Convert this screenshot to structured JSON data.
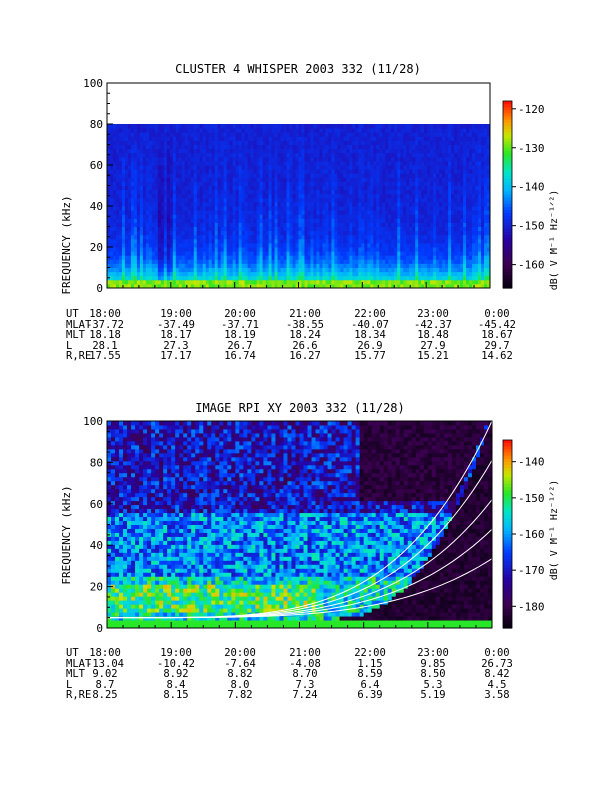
{
  "chart_data": [
    {
      "type": "heatmap",
      "title": "CLUSTER 4 WHISPER 2003 332 (11/28)",
      "ylabel": "FREQUENCY (kHz)",
      "ylim": [
        0,
        100
      ],
      "yticks": [
        "0",
        "20",
        "40",
        "60",
        "80",
        "100"
      ],
      "colorbar": {
        "label": "dB( V M⁻¹ Hz⁻¹ᐟ²)",
        "range": [
          -166,
          -118
        ],
        "ticks": [
          "-120",
          "-130",
          "-140",
          "-150",
          "-160"
        ]
      },
      "x_categories": [
        "18:00",
        "19:00",
        "20:00",
        "21:00",
        "22:00",
        "23:00",
        "0:00"
      ],
      "ephemeris": [
        {
          "label": "UT",
          "values": [
            "18:00",
            "19:00",
            "20:00",
            "21:00",
            "22:00",
            "23:00",
            "0:00"
          ]
        },
        {
          "label": "MLAT",
          "values": [
            "-37.72",
            "-37.49",
            "-37.71",
            "-38.55",
            "-40.07",
            "-42.37",
            "-45.42"
          ]
        },
        {
          "label": "MLT",
          "values": [
            "18.18",
            "18.17",
            "18.19",
            "18.24",
            "18.34",
            "18.48",
            "18.67"
          ]
        },
        {
          "label": "L",
          "values": [
            "28.1",
            "27.3",
            "26.7",
            "26.6",
            "26.9",
            "27.9",
            "29.7"
          ]
        },
        {
          "label": "R,RE",
          "values": [
            "17.55",
            "17.17",
            "16.74",
            "16.27",
            "15.77",
            "15.21",
            "14.62"
          ]
        }
      ],
      "data_range_khz": [
        0,
        80
      ]
    },
    {
      "type": "heatmap",
      "title": "IMAGE RPI XY 2003 332 (11/28)",
      "ylabel": "FREQUENCY (kHz)",
      "ylim": [
        0,
        100
      ],
      "yticks": [
        "0",
        "20",
        "40",
        "60",
        "80",
        "100"
      ],
      "colorbar": {
        "label": "dB( V M⁻¹ Hz⁻¹ᐟ²)",
        "range": [
          -186,
          -134
        ],
        "ticks": [
          "-140",
          "-150",
          "-160",
          "-170",
          "-180"
        ]
      },
      "x_categories": [
        "18:00",
        "19:00",
        "20:00",
        "21:00",
        "22:00",
        "23:00",
        "0:00"
      ],
      "ephemeris": [
        {
          "label": "UT",
          "values": [
            "18:00",
            "19:00",
            "20:00",
            "21:00",
            "22:00",
            "23:00",
            "0:00"
          ]
        },
        {
          "label": "MLAT",
          "values": [
            "-13.04",
            "-10.42",
            "-7.64",
            "-4.08",
            "1.15",
            "9.85",
            "26.73"
          ]
        },
        {
          "label": "MLT",
          "values": [
            "9.02",
            "8.92",
            "8.82",
            "8.70",
            "8.59",
            "8.50",
            "8.42"
          ]
        },
        {
          "label": "L",
          "values": [
            "8.7",
            "8.4",
            "8.0",
            "7.3",
            "6.4",
            "5.3",
            "4.5"
          ]
        },
        {
          "label": "R,RE",
          "values": [
            "8.25",
            "8.15",
            "7.82",
            "7.24",
            "6.39",
            "5.19",
            "3.58"
          ]
        }
      ],
      "data_range_khz": [
        0,
        100
      ]
    }
  ]
}
